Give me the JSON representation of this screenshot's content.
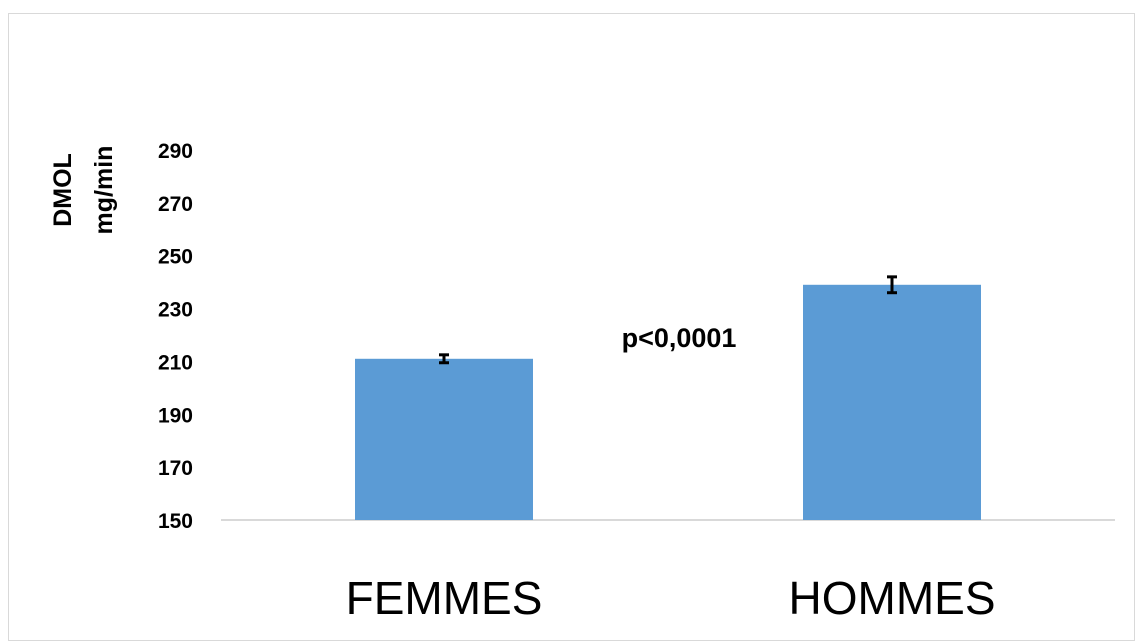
{
  "chart_data": {
    "type": "bar",
    "categories": [
      "FEMMES",
      "HOMMES"
    ],
    "values": [
      211,
      239
    ],
    "error": [
      1.5,
      3
    ],
    "ylabel_lines": [
      "DMOL",
      "mg/min"
    ],
    "ylim": [
      150,
      290
    ],
    "yticks": [
      "150",
      "170",
      "190",
      "210",
      "230",
      "250",
      "270",
      "290"
    ],
    "annotation": "p<0,0001",
    "grid": false,
    "bar_color": "#5b9bd5",
    "axis_color": "#d9d9d9"
  }
}
